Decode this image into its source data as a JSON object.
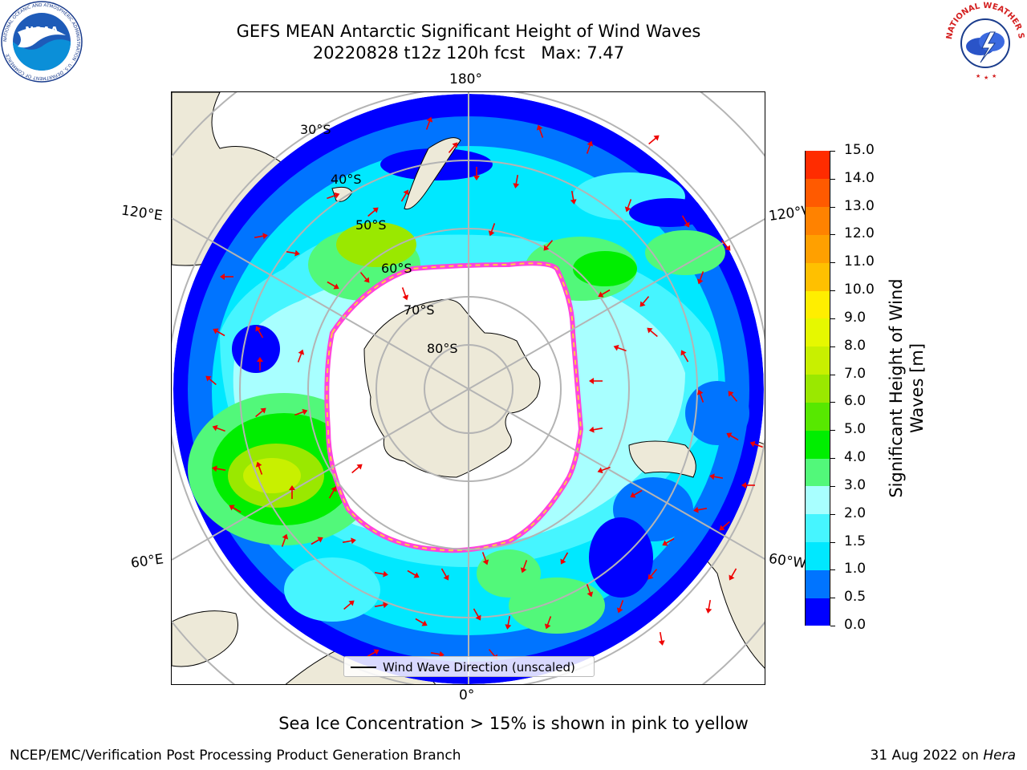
{
  "header": {
    "title_line1": "GEFS MEAN Antarctic Significant Height of Wind Waves",
    "title_line2": "20220828 t12z 120h fcst   Max: 7.47"
  },
  "logos": {
    "noaa": {
      "text": "NOAA",
      "ring_text": "NATIONAL OCEANIC AND ATMOSPHERIC ADMINISTRATION · U.S. DEPARTMENT OF COMMERCE"
    },
    "nws": {
      "ring_text": "NATIONAL WEATHER SERVICE"
    }
  },
  "map": {
    "projection": "south polar stereographic",
    "longitude_labels": {
      "top": "180°",
      "bottom": "0°",
      "left_upper": "120°E",
      "left_lower": "60°E",
      "right_upper": "120°W",
      "right_lower": "60°W"
    },
    "latitude_labels": [
      "30°S",
      "40°S",
      "50°S",
      "60°S",
      "70°S",
      "80°S"
    ],
    "legend_label": "Wind Wave Direction (unscaled)",
    "colors": {
      "land": "#ede9d8",
      "ocean_low": "#0000ff",
      "ice_edge_pink": "#ff44dd",
      "ice_edge_yellow": "#ffd040",
      "arrow": "#ee0000",
      "grid": "#b4b4b4"
    }
  },
  "colorbar": {
    "title": "Significant Height of Wind Waves [m]",
    "title_line1": "Significant Height of Wind",
    "title_line2": "Waves [m]",
    "tick_labels": [
      "15.0",
      "14.0",
      "13.0",
      "12.0",
      "11.0",
      "10.0",
      "9.0",
      "8.0",
      "7.0",
      "6.0",
      "5.0",
      "4.0",
      "3.0",
      "2.0",
      "1.5",
      "1.0",
      "0.5",
      "0.0"
    ],
    "colors": [
      "#0000ff",
      "#0074ff",
      "#00e8ff",
      "#46f5ff",
      "#a8ffff",
      "#52f87a",
      "#00ee00",
      "#57e800",
      "#9ae800",
      "#c8f000",
      "#e6f800",
      "#ffee00",
      "#ffc000",
      "#ffa000",
      "#ff8200",
      "#ff5a00",
      "#ff2c00"
    ]
  },
  "caption": "Sea Ice Concentration > 15% is shown in pink to yellow",
  "footer": {
    "left": "NCEP/EMC/Verification Post Processing Product Generation Branch",
    "right_prefix": "31 Aug 2022 on ",
    "right_italic": "Hera"
  }
}
